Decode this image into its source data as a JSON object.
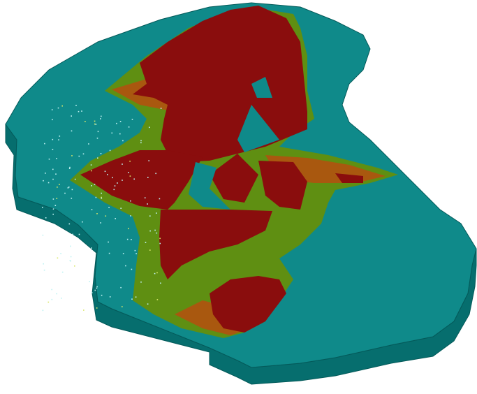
{
  "scene": {
    "kind": "3d-terrain-surface-render",
    "background_color": "#ffffff",
    "colors": {
      "base_top": "#0f8a8a",
      "base_side": "#066e6e",
      "base_edge": "#045a5a",
      "band_green": "#5f8f12",
      "band_orange": "#a9580f",
      "zone_red": "#8a0d0d",
      "speckle_light": "#bff2f2",
      "speckle_yellow": "#d9e86a"
    },
    "layers": [
      {
        "name": "base-platform",
        "color_key": "base_top"
      },
      {
        "name": "green-band",
        "color_key": "band_green"
      },
      {
        "name": "orange-band",
        "color_key": "band_orange"
      },
      {
        "name": "red-zone",
        "color_key": "zone_red"
      }
    ]
  }
}
